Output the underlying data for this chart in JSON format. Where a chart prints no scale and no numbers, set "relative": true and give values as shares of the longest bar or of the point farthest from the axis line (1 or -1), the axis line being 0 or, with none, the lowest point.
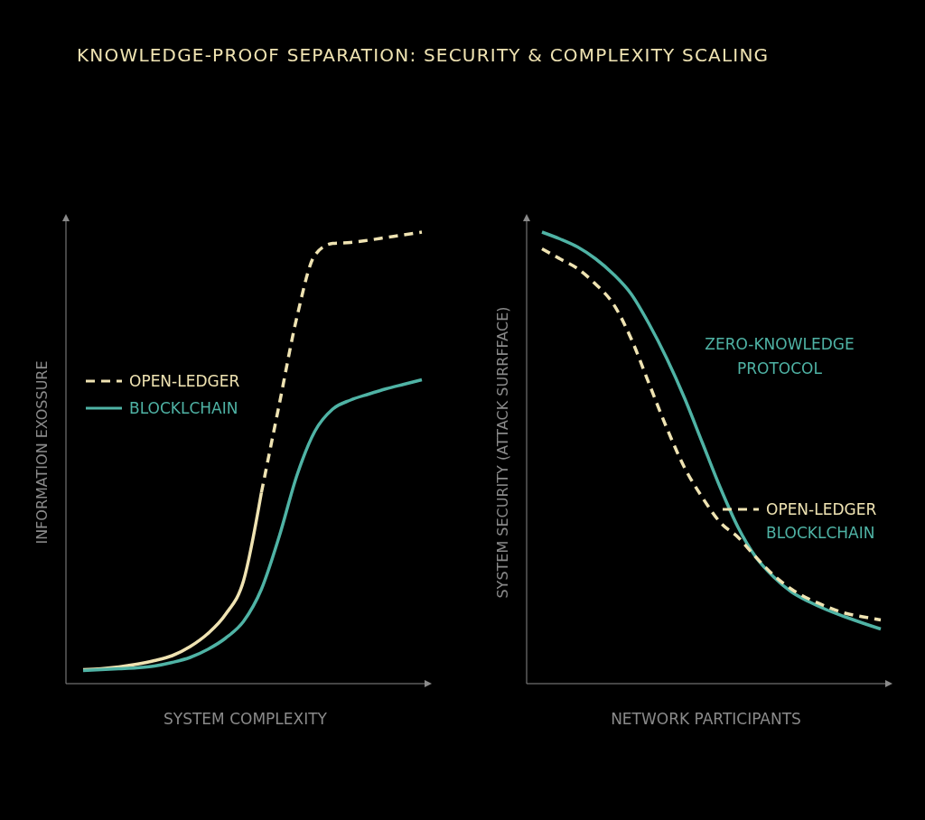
{
  "chart_data": [
    {
      "type": "line",
      "title": "KNOWLEDGE-PROOF SEPARATION: SECURITY & COMPLEXITY SCALING",
      "xlabel": "SYSTEM COMPLEXITY",
      "ylabel": "INFORMATION EXOSSURE",
      "relative": true,
      "grid": false,
      "legend": "left",
      "categories": [
        null,
        null,
        null,
        null,
        null,
        null,
        null,
        null,
        null,
        null,
        null,
        null,
        null,
        null,
        null,
        null,
        null,
        null,
        null,
        null
      ],
      "series": [
        {
          "color": "#efe3b2",
          "line_style": "solid",
          "values": [
            0.031,
            0.033,
            0.037,
            0.043,
            0.051,
            0.062,
            0.082,
            0.111,
            0.154,
            0.228,
            0.423,
            null,
            null,
            null,
            null,
            null,
            null,
            null,
            null,
            null
          ]
        },
        {
          "name": "OPEN-LEDGER",
          "color": "#efe3b2",
          "line_style": "dashed",
          "values": [
            null,
            null,
            null,
            null,
            null,
            null,
            null,
            null,
            null,
            null,
            0.423,
            0.618,
            0.813,
            0.949,
            0.975,
            0.977,
            0.982,
            0.988,
            0.994,
            1
          ]
        },
        {
          "name": "BLOCKLCHAIN",
          "color": "#4fb3a5",
          "line_style": "solid",
          "values": [
            0.029,
            0.031,
            0.033,
            0.035,
            0.039,
            0.047,
            0.058,
            0.076,
            0.101,
            0.138,
            0.209,
            0.326,
            0.462,
            0.559,
            0.608,
            0.628,
            0.641,
            0.653,
            0.663,
            0.673
          ]
        }
      ]
    },
    {
      "type": "line",
      "xlabel": "NETWORK PARTICIPANTS",
      "ylabel": "SYSTEM SECURITY (ATTACK SURRFFACE)",
      "relative": true,
      "grid": false,
      "legend": "right",
      "annotations": [
        "BLOCKLCHAIN"
      ],
      "categories": [
        null,
        null,
        null,
        null,
        null,
        null,
        null,
        null,
        null,
        null,
        null,
        null,
        null,
        null,
        null,
        null,
        null,
        null,
        null,
        null
      ],
      "series": [
        {
          "name": "ZERO-KNOWLEDGE PROTOCOL",
          "color": "#4fb3a5",
          "line_style": "solid",
          "values": [
            1,
            0.985,
            0.967,
            0.941,
            0.907,
            0.863,
            0.797,
            0.72,
            0.632,
            0.533,
            0.434,
            0.346,
            0.28,
            0.236,
            0.203,
            0.181,
            0.163,
            0.148,
            0.134,
            0.121
          ]
        },
        {
          "name": "OPEN-LEDGER",
          "color": "#efe3b2",
          "line_style": "dashed",
          "values": [
            0.963,
            0.941,
            0.919,
            0.885,
            0.841,
            0.764,
            0.665,
            0.566,
            0.478,
            0.412,
            0.357,
            0.324,
            0.28,
            0.24,
            0.209,
            0.187,
            0.17,
            0.156,
            0.148,
            0.141
          ]
        }
      ]
    }
  ]
}
